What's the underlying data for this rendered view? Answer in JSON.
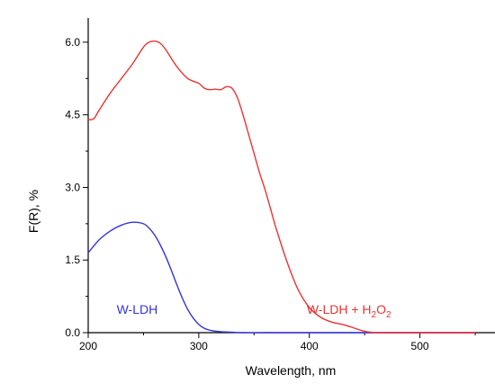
{
  "chart_data": {
    "type": "line",
    "xlabel": "Wavelength, nm",
    "ylabel": "F(R), %",
    "xlim": [
      200,
      550
    ],
    "ylim": [
      0,
      6.5
    ],
    "x_ticks": [
      {
        "value": 200,
        "label": "200"
      },
      {
        "value": 300,
        "label": "300"
      },
      {
        "value": 400,
        "label": "400"
      },
      {
        "value": 500,
        "label": "500"
      }
    ],
    "y_ticks": [
      {
        "value": 0.0,
        "label": "0.0"
      },
      {
        "value": 1.5,
        "label": "1.5"
      },
      {
        "value": 3.0,
        "label": "3.0"
      },
      {
        "value": 4.5,
        "label": "4.5"
      },
      {
        "value": 6.0,
        "label": "6.0"
      }
    ],
    "grid": false,
    "legend": "inline labels",
    "series": [
      {
        "name": "W-LDH",
        "color": "#3333dd",
        "label_x": 242,
        "label_y": 0.48,
        "x": [
          200,
          210,
          220,
          230,
          240,
          250,
          255,
          260,
          265,
          270,
          275,
          280,
          285,
          290,
          295,
          300,
          305,
          310,
          315,
          320,
          330,
          340,
          360,
          400,
          450,
          500,
          550
        ],
        "y": [
          1.65,
          1.92,
          2.1,
          2.22,
          2.28,
          2.25,
          2.16,
          2.02,
          1.82,
          1.58,
          1.3,
          1.0,
          0.72,
          0.48,
          0.3,
          0.17,
          0.09,
          0.05,
          0.03,
          0.02,
          0.01,
          0.0,
          0.0,
          0.0,
          0.0,
          0.0,
          0.0
        ]
      },
      {
        "name": "W-LDH + H2O2",
        "label_main": "W-LDH + H",
        "label_sub1": "2",
        "label_mid": "O",
        "label_sub2": "2",
        "color": "#ee3333",
        "label_x": 440,
        "label_y": 0.48,
        "x": [
          200,
          205,
          210,
          220,
          230,
          240,
          250,
          255,
          260,
          265,
          270,
          280,
          290,
          300,
          305,
          310,
          315,
          320,
          325,
          330,
          335,
          340,
          345,
          350,
          355,
          360,
          365,
          370,
          380,
          390,
          400,
          410,
          420,
          430,
          440,
          445,
          450,
          455,
          460,
          470,
          480,
          500,
          550
        ],
        "y": [
          4.4,
          4.42,
          4.6,
          4.95,
          5.25,
          5.55,
          5.9,
          6.0,
          6.02,
          5.98,
          5.85,
          5.5,
          5.25,
          5.15,
          5.05,
          5.02,
          5.03,
          5.02,
          5.08,
          5.05,
          4.85,
          4.5,
          4.1,
          3.7,
          3.3,
          2.95,
          2.55,
          2.15,
          1.45,
          0.88,
          0.52,
          0.32,
          0.22,
          0.17,
          0.1,
          0.06,
          0.03,
          0.01,
          0.0,
          0.0,
          0.0,
          0.0,
          0.0
        ]
      }
    ]
  }
}
